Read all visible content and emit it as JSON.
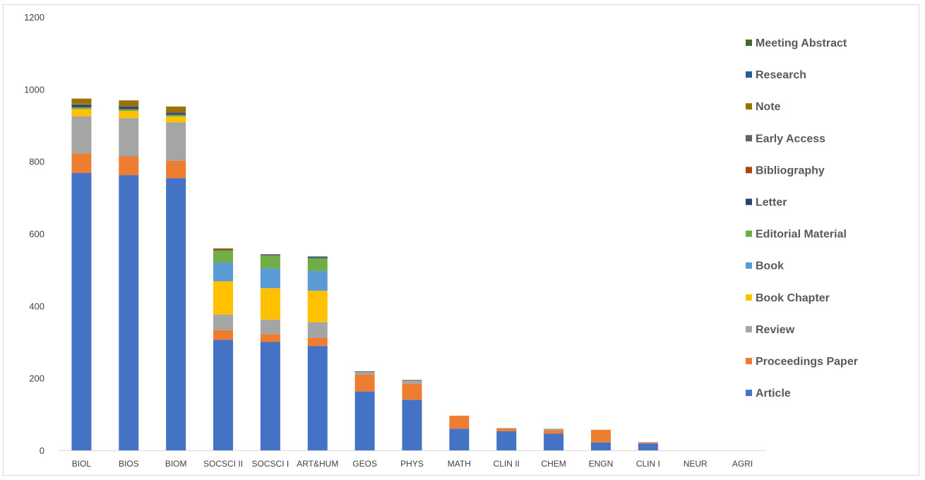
{
  "chart_data": {
    "type": "bar",
    "stacked": true,
    "title": "",
    "xlabel": "",
    "ylabel": "",
    "ylim": [
      0,
      1200
    ],
    "yticks": [
      0,
      200,
      400,
      600,
      800,
      1000,
      1200
    ],
    "grid": false,
    "legend_position": "right",
    "categories": [
      "BIOL",
      "BIOS",
      "BIOM",
      "SOCSCI II",
      "SOCSCI I",
      "ART&HUM",
      "GEOS",
      "PHYS",
      "MATH",
      "CLIN II",
      "CHEM",
      "ENGN",
      "CLIN I",
      "NEUR",
      "AGRI"
    ],
    "series": [
      {
        "name": "Article",
        "color": "#4472c4",
        "values": [
          768,
          762,
          754,
          306,
          300,
          289,
          163,
          140,
          60,
          53,
          46,
          22,
          19,
          0,
          0
        ]
      },
      {
        "name": "Proceedings Paper",
        "color": "#ed7d31",
        "values": [
          54,
          52,
          48,
          27,
          22,
          23,
          47,
          45,
          36,
          8,
          10,
          35,
          3,
          0,
          0
        ]
      },
      {
        "name": "Review",
        "color": "#a5a5a5",
        "values": [
          103,
          106,
          106,
          43,
          40,
          43,
          7,
          8,
          0,
          1,
          4,
          0,
          1,
          0,
          0
        ]
      },
      {
        "name": "Book Chapter",
        "color": "#ffc000",
        "values": [
          20,
          20,
          16,
          92,
          87,
          87,
          0,
          0,
          0,
          0,
          0,
          0,
          0,
          0,
          0
        ]
      },
      {
        "name": "Book",
        "color": "#5b9bd5",
        "values": [
          0,
          0,
          0,
          52,
          55,
          55,
          0,
          0,
          0,
          0,
          0,
          0,
          0,
          0,
          0
        ]
      },
      {
        "name": "Editorial Material",
        "color": "#70ad47",
        "values": [
          5,
          5,
          5,
          34,
          35,
          35,
          0,
          0,
          0,
          0,
          0,
          0,
          0,
          0,
          0
        ]
      },
      {
        "name": "Letter",
        "color": "#264478",
        "values": [
          6,
          6,
          5,
          0,
          0,
          3,
          0,
          0,
          0,
          0,
          0,
          0,
          0,
          0,
          0
        ]
      },
      {
        "name": "Bibliography",
        "color": "#9e480e",
        "values": [
          2,
          2,
          1,
          4,
          0,
          0,
          0,
          0,
          0,
          0,
          0,
          0,
          0,
          0,
          0
        ]
      },
      {
        "name": " Early Access",
        "color": "#636363",
        "values": [
          2,
          2,
          2,
          1,
          4,
          2,
          2,
          2,
          0,
          0,
          0,
          0,
          0,
          0,
          0
        ]
      },
      {
        "name": "Note",
        "color": "#997300",
        "values": [
          14,
          14,
          15,
          0,
          0,
          0,
          0,
          0,
          0,
          0,
          0,
          0,
          0,
          0,
          0
        ]
      },
      {
        "name": "Research",
        "color": "#255e91",
        "values": [
          0,
          0,
          0,
          0,
          0,
          0,
          0,
          0,
          0,
          0,
          0,
          0,
          0,
          0,
          0
        ]
      },
      {
        "name": "Meeting Abstract",
        "color": "#43682b",
        "values": [
          0,
          0,
          0,
          0,
          0,
          0,
          0,
          0,
          0,
          0,
          0,
          0,
          0,
          0,
          0
        ]
      }
    ],
    "legend_order": [
      "Meeting Abstract",
      "Research",
      "Note",
      " Early Access",
      "Bibliography",
      "Letter",
      "Editorial Material",
      "Book",
      " Book Chapter",
      "Review",
      "Proceedings Paper",
      "Article"
    ]
  }
}
